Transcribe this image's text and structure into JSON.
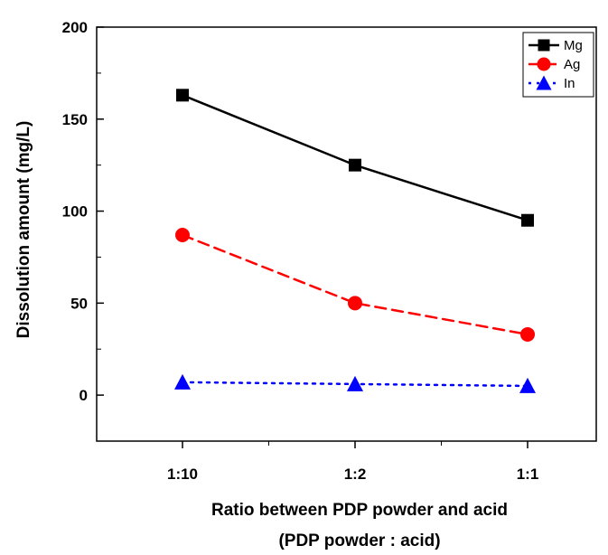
{
  "chart_data": {
    "type": "line",
    "title": "",
    "xlabel": "Ratio between PDP powder and acid",
    "xlabel_line2": "(PDP powder : acid)",
    "ylabel": "Dissolution amount (mg/L)",
    "categories": [
      "1:10",
      "1:2",
      "1:1"
    ],
    "ylim": [
      -25,
      200
    ],
    "yticks": [
      0,
      50,
      100,
      150,
      200
    ],
    "grid": false,
    "legend_position": "top-right",
    "series": [
      {
        "name": "Mg",
        "values": [
          163,
          125,
          95
        ],
        "color": "#000000",
        "marker": "square",
        "line": "solid"
      },
      {
        "name": "Ag",
        "values": [
          87,
          50,
          33
        ],
        "color": "#ff0000",
        "marker": "circle",
        "line": "dashed"
      },
      {
        "name": "In",
        "values": [
          7,
          6,
          5
        ],
        "color": "#0000ff",
        "marker": "triangle",
        "line": "dotted"
      }
    ]
  }
}
